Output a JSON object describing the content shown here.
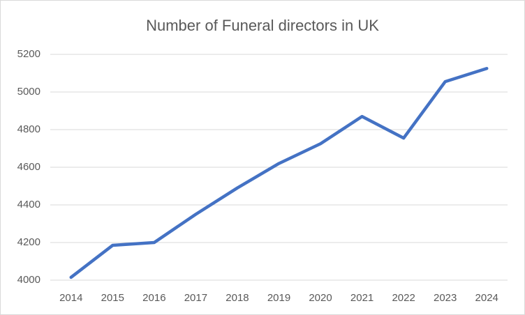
{
  "chart_data": {
    "type": "line",
    "title": "Number of Funeral directors in UK",
    "categories": [
      "2014",
      "2015",
      "2016",
      "2017",
      "2018",
      "2019",
      "2020",
      "2021",
      "2022",
      "2023",
      "2024"
    ],
    "values": [
      4015,
      4185,
      4200,
      4350,
      4490,
      4620,
      4725,
      4870,
      4755,
      5055,
      5125
    ],
    "color": "#4472c4",
    "ylim": [
      4000,
      5200
    ],
    "yticks": [
      4000,
      4200,
      4400,
      4600,
      4800,
      5000,
      5200
    ],
    "grid": true
  }
}
